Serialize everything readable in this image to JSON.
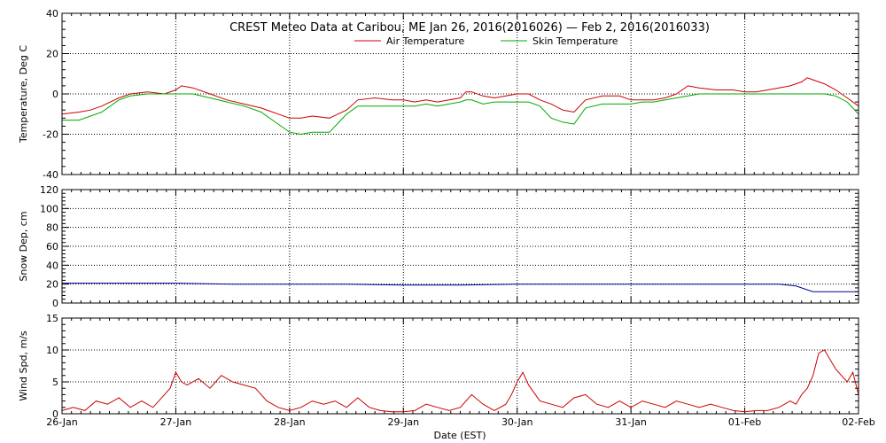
{
  "chart_data": {
    "type": "line",
    "title": "CREST Meteo Data at Caribou, ME   Jan 26, 2016(2016026) — Feb  2, 2016(2016033)",
    "xlabel": "Date (EST)",
    "x_ticks": [
      "26-Jan",
      "27-Jan",
      "28-Jan",
      "29-Jan",
      "30-Jan",
      "31-Jan",
      "01-Feb",
      "02-Feb"
    ],
    "grid": true,
    "panels": [
      {
        "ylabel": "Temperature, Deg C",
        "ylim": [
          -40,
          40
        ],
        "yticks": [
          -40,
          -20,
          0,
          20,
          40
        ],
        "legend": "top-center",
        "series": [
          {
            "name": "Air Temperature",
            "color": "#cc0000",
            "x": [
              0,
              0.15,
              0.25,
              0.35,
              0.5,
              0.6,
              0.75,
              0.9,
              1.0,
              1.05,
              1.15,
              1.3,
              1.45,
              1.6,
              1.75,
              1.9,
              2.0,
              2.1,
              2.2,
              2.35,
              2.5,
              2.6,
              2.75,
              2.9,
              3.0,
              3.1,
              3.2,
              3.3,
              3.4,
              3.5,
              3.55,
              3.6,
              3.7,
              3.8,
              3.9,
              4.0,
              4.1,
              4.2,
              4.3,
              4.4,
              4.5,
              4.6,
              4.75,
              4.9,
              5.0,
              5.1,
              5.2,
              5.3,
              5.4,
              5.5,
              5.6,
              5.75,
              5.9,
              6.0,
              6.1,
              6.2,
              6.3,
              6.4,
              6.5,
              6.55,
              6.6,
              6.7,
              6.8,
              6.9,
              7.0
            ],
            "values": [
              -10,
              -9,
              -8,
              -6,
              -2,
              0,
              1,
              0,
              2,
              4,
              3,
              0,
              -3,
              -5,
              -7,
              -10,
              -12,
              -12,
              -11,
              -12,
              -8,
              -3,
              -2,
              -3,
              -3,
              -4,
              -3,
              -4,
              -3,
              -2,
              1,
              1,
              -1,
              -2,
              -1,
              0,
              0,
              -3,
              -5,
              -8,
              -9,
              -3,
              -1,
              -1,
              -3,
              -3,
              -3,
              -2,
              0,
              4,
              3,
              2,
              2,
              1,
              1,
              2,
              3,
              4,
              6,
              8,
              7,
              5,
              2,
              -2,
              -6
            ]
          },
          {
            "name": "Skin Temperature",
            "color": "#00aa00",
            "x": [
              0,
              0.15,
              0.25,
              0.35,
              0.5,
              0.6,
              0.75,
              0.9,
              1.0,
              1.05,
              1.15,
              1.3,
              1.45,
              1.6,
              1.75,
              1.9,
              2.0,
              2.1,
              2.2,
              2.35,
              2.5,
              2.6,
              2.75,
              2.9,
              3.0,
              3.1,
              3.2,
              3.3,
              3.4,
              3.5,
              3.55,
              3.6,
              3.7,
              3.8,
              3.9,
              4.0,
              4.1,
              4.2,
              4.3,
              4.4,
              4.5,
              4.6,
              4.75,
              4.9,
              5.0,
              5.1,
              5.2,
              5.3,
              5.4,
              5.5,
              5.6,
              5.75,
              5.9,
              6.0,
              6.1,
              6.2,
              6.3,
              6.4,
              6.5,
              6.55,
              6.6,
              6.7,
              6.8,
              6.9,
              7.0
            ],
            "values": [
              -13,
              -13,
              -11,
              -9,
              -3,
              -1,
              0,
              0,
              0,
              0,
              0,
              -2,
              -4,
              -6,
              -9,
              -15,
              -19,
              -20,
              -19,
              -19,
              -10,
              -6,
              -6,
              -6,
              -6,
              -6,
              -5,
              -6,
              -5,
              -4,
              -3,
              -3,
              -5,
              -4,
              -4,
              -4,
              -4,
              -6,
              -12,
              -14,
              -15,
              -7,
              -5,
              -5,
              -5,
              -4,
              -4,
              -3,
              -2,
              -1,
              0,
              0,
              0,
              0,
              0,
              0,
              0,
              0,
              0,
              0,
              0,
              0,
              -1,
              -4,
              -10
            ]
          }
        ]
      },
      {
        "ylabel": "Snow Dep, cm",
        "ylim": [
          0,
          120
        ],
        "yticks": [
          0,
          20,
          40,
          60,
          80,
          100,
          120
        ],
        "series": [
          {
            "color": "#000099",
            "x": [
              0,
              0.5,
              1.0,
              1.5,
              2.0,
              2.5,
              3.0,
              3.5,
              4.0,
              4.5,
              5.0,
              5.5,
              6.0,
              6.3,
              6.45,
              6.55,
              6.6,
              7.0
            ],
            "values": [
              21,
              21,
              21,
              20,
              20,
              20,
              19,
              19,
              20,
              20,
              20,
              20,
              20,
              20,
              18,
              14,
              12,
              12
            ]
          }
        ]
      },
      {
        "ylabel": "Wind Spd, m/s",
        "ylim": [
          0,
          15
        ],
        "yticks": [
          0,
          5,
          10,
          15
        ],
        "series": [
          {
            "color": "#cc0000",
            "x": [
              0,
              0.1,
              0.2,
              0.3,
              0.4,
              0.5,
              0.6,
              0.7,
              0.8,
              0.9,
              0.95,
              1.0,
              1.05,
              1.1,
              1.2,
              1.3,
              1.4,
              1.5,
              1.6,
              1.7,
              1.8,
              1.9,
              2.0,
              2.1,
              2.2,
              2.3,
              2.4,
              2.5,
              2.6,
              2.7,
              2.8,
              2.9,
              3.0,
              3.1,
              3.2,
              3.3,
              3.4,
              3.5,
              3.6,
              3.7,
              3.8,
              3.9,
              3.95,
              4.0,
              4.05,
              4.1,
              4.2,
              4.3,
              4.4,
              4.5,
              4.6,
              4.7,
              4.8,
              4.9,
              5.0,
              5.1,
              5.2,
              5.3,
              5.4,
              5.5,
              5.6,
              5.7,
              5.8,
              5.9,
              6.0,
              6.1,
              6.2,
              6.3,
              6.4,
              6.45,
              6.5,
              6.55,
              6.6,
              6.65,
              6.7,
              6.8,
              6.85,
              6.9,
              6.95,
              7.0
            ],
            "values": [
              0.5,
              1.0,
              0.5,
              2.0,
              1.5,
              2.5,
              1.0,
              2.0,
              1.0,
              3.0,
              4.0,
              6.5,
              5.0,
              4.5,
              5.5,
              4.0,
              6.0,
              5.0,
              4.5,
              4.0,
              2.0,
              1.0,
              0.5,
              1.0,
              2.0,
              1.5,
              2.0,
              1.0,
              2.5,
              1.0,
              0.5,
              0.3,
              0.3,
              0.5,
              1.5,
              1.0,
              0.5,
              1.0,
              3.0,
              1.5,
              0.5,
              1.5,
              3.0,
              5.0,
              6.5,
              4.5,
              2.0,
              1.5,
              1.0,
              2.5,
              3.0,
              1.5,
              1.0,
              2.0,
              1.0,
              2.0,
              1.5,
              1.0,
              2.0,
              1.5,
              1.0,
              1.5,
              1.0,
              0.5,
              0.3,
              0.5,
              0.5,
              1.0,
              2.0,
              1.5,
              3.0,
              4.0,
              6.0,
              9.5,
              10.0,
              7.0,
              6.0,
              5.0,
              6.5,
              3.0
            ]
          }
        ]
      }
    ]
  }
}
